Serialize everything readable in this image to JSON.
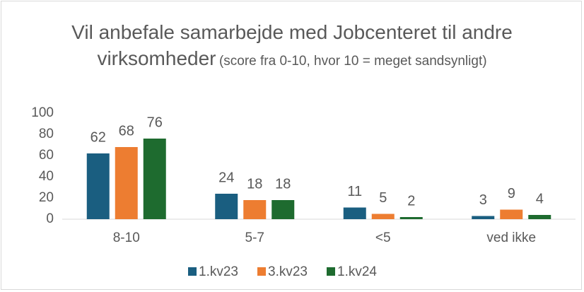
{
  "chart_data": {
    "type": "bar",
    "title": "Vil anbefale samarbejde med Jobcenteret til andre virksomheder",
    "subtitle": "(score fra 0-10, hvor 10 = meget sandsynligt)",
    "categories": [
      "8-10",
      "5-7",
      "<5",
      "ved ikke"
    ],
    "series": [
      {
        "name": "1.kv23",
        "color": "#1a5e80",
        "values": [
          62,
          24,
          11,
          3
        ]
      },
      {
        "name": "3.kv23",
        "color": "#ed7d31",
        "values": [
          68,
          18,
          5,
          9
        ]
      },
      {
        "name": "1.kv24",
        "color": "#1e6b2f",
        "values": [
          76,
          18,
          2,
          4
        ]
      }
    ],
    "ylim": [
      0,
      100
    ],
    "yticks": [
      0,
      20,
      40,
      60,
      80,
      100
    ],
    "grid": false,
    "legend": "bottom"
  }
}
